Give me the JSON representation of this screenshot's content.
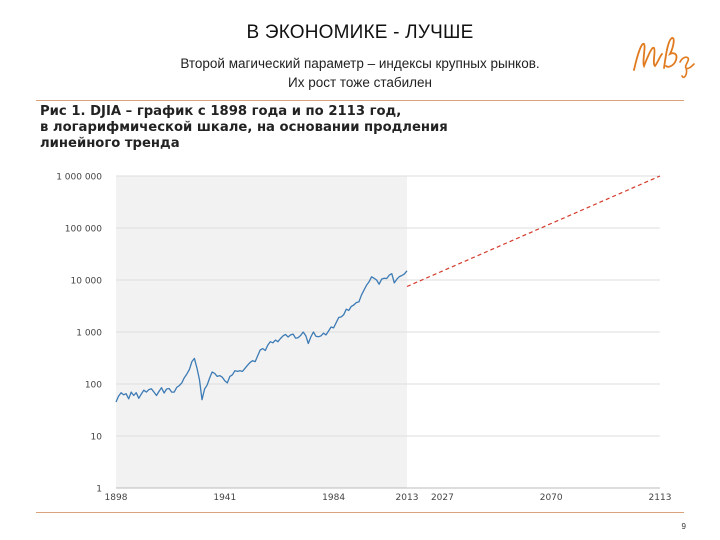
{
  "slide": {
    "title": "В ЭКОНОМИКЕ - ЛУЧШЕ",
    "subtitle_line1": "Второй магический параметр – индексы крупных рынков.",
    "subtitle_line2": "Их рост тоже стабилен",
    "page_number": "9"
  },
  "colors": {
    "accent": "#e07b1f",
    "rule": "#d9a27c",
    "history_line": "#3d7bb5",
    "trend_line": "#d43a2a",
    "shade": "#f2f2f2",
    "grid": "#dddddd"
  },
  "chart_data": {
    "type": "line",
    "title_lines": [
      "Рис 1. DJIA – график с 1898 года и по 2113 год,",
      "в логарифмической шкале, на основании продления",
      "линейного тренда"
    ],
    "xlabel": "",
    "ylabel": "",
    "y_scale": "log",
    "xlim": [
      1898,
      2113
    ],
    "ylim": [
      1,
      1000000
    ],
    "x_ticks": [
      1898,
      1941,
      1984,
      2013,
      2027,
      2070,
      2113
    ],
    "y_ticks": [
      {
        "value": 1,
        "label": "1"
      },
      {
        "value": 10,
        "label": "10"
      },
      {
        "value": 100,
        "label": "100"
      },
      {
        "value": 1000,
        "label": "1 000"
      },
      {
        "value": 10000,
        "label": "10 000"
      },
      {
        "value": 100000,
        "label": "100 000"
      },
      {
        "value": 1000000,
        "label": "1 000 000"
      }
    ],
    "grid": true,
    "shaded_region": [
      1898,
      2013
    ],
    "series": [
      {
        "style": "solid",
        "color": "#3d7bb5",
        "x": [
          1898,
          1899,
          1900,
          1901,
          1902,
          1903,
          1904,
          1905,
          1906,
          1907,
          1908,
          1909,
          1910,
          1911,
          1912,
          1913,
          1914,
          1915,
          1916,
          1917,
          1918,
          1919,
          1920,
          1921,
          1922,
          1923,
          1924,
          1925,
          1926,
          1927,
          1928,
          1929,
          1930,
          1931,
          1932,
          1933,
          1934,
          1935,
          1936,
          1937,
          1938,
          1939,
          1940,
          1941,
          1942,
          1943,
          1944,
          1945,
          1946,
          1947,
          1948,
          1949,
          1950,
          1951,
          1952,
          1953,
          1954,
          1955,
          1956,
          1957,
          1958,
          1959,
          1960,
          1961,
          1962,
          1963,
          1964,
          1965,
          1966,
          1967,
          1968,
          1969,
          1970,
          1971,
          1972,
          1973,
          1974,
          1975,
          1976,
          1977,
          1978,
          1979,
          1980,
          1981,
          1982,
          1983,
          1984,
          1985,
          1986,
          1987,
          1988,
          1989,
          1990,
          1991,
          1992,
          1993,
          1994,
          1995,
          1996,
          1997,
          1998,
          1999,
          2000,
          2001,
          2002,
          2003,
          2004,
          2005,
          2006,
          2007,
          2008,
          2009,
          2010,
          2011,
          2012,
          2013
        ],
        "values": [
          45,
          58,
          68,
          62,
          65,
          52,
          70,
          60,
          68,
          53,
          64,
          76,
          70,
          78,
          81,
          70,
          60,
          72,
          85,
          67,
          80,
          82,
          70,
          70,
          86,
          93,
          105,
          132,
          155,
          190,
          270,
          310,
          200,
          120,
          50,
          80,
          95,
          130,
          170,
          160,
          140,
          145,
          135,
          115,
          105,
          140,
          150,
          180,
          175,
          180,
          175,
          200,
          230,
          260,
          280,
          270,
          350,
          450,
          480,
          440,
          560,
          650,
          620,
          700,
          650,
          750,
          840,
          900,
          800,
          880,
          910,
          760,
          780,
          860,
          1000,
          850,
          600,
          800,
          1000,
          830,
          810,
          840,
          950,
          880,
          1040,
          1250,
          1200,
          1500,
          1900,
          1950,
          2150,
          2750,
          2600,
          3100,
          3300,
          3700,
          3800,
          5100,
          6400,
          7900,
          9200,
          11500,
          10800,
          10000,
          8300,
          10400,
          10800,
          10700,
          12400,
          13200,
          8800,
          10400,
          11600,
          12200,
          13100,
          15000
        ]
      },
      {
        "style": "dashed",
        "color": "#d43a2a",
        "x": [
          2013,
          2113
        ],
        "values": [
          7500,
          1000000
        ]
      }
    ]
  }
}
